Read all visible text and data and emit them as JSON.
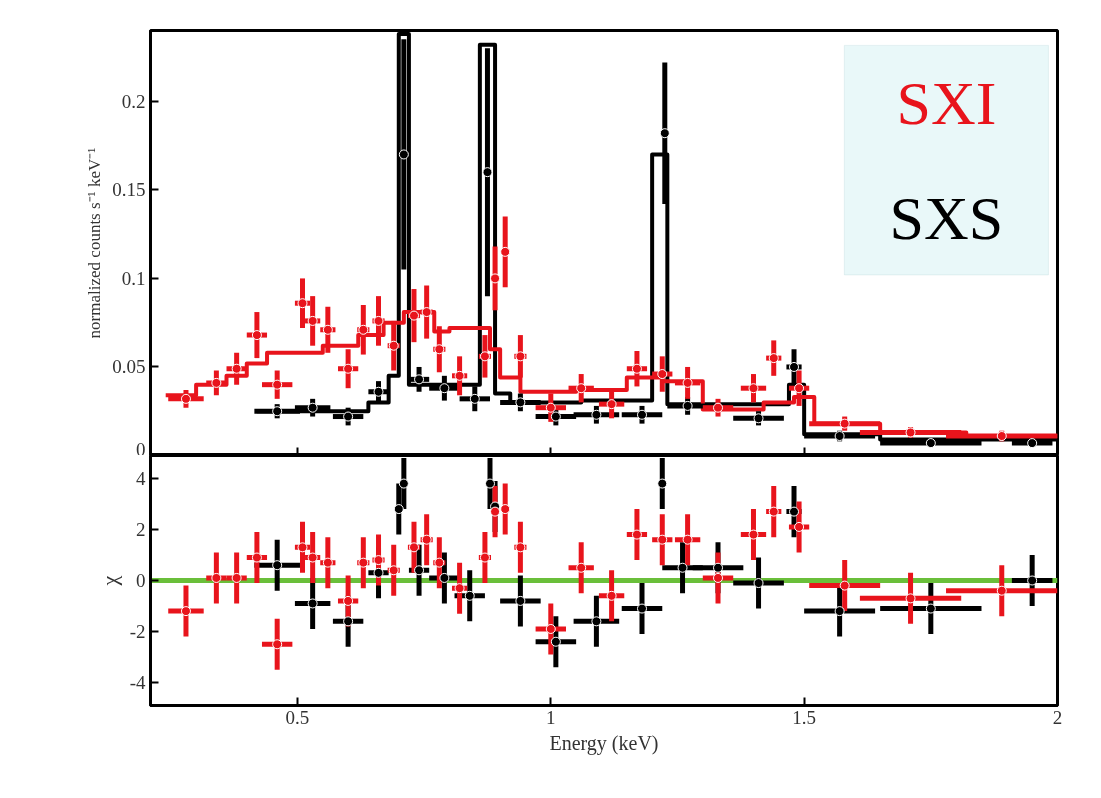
{
  "chart_data": [
    {
      "type": "scatter",
      "ylabel": "normalized counts s⁻¹ keV⁻¹",
      "xlim": [
        0.21,
        2.0
      ],
      "xticks": [
        0.5,
        1,
        1.5,
        2
      ],
      "ylim": [
        0,
        0.24
      ],
      "yticks": [
        0,
        0.05,
        0.1,
        0.15,
        0.2
      ],
      "tick_labels": "y",
      "series": [
        {
          "type": "line",
          "color": "#000000",
          "x": [
            0.42,
            0.64,
            0.64,
            0.68,
            0.68,
            0.7,
            0.7,
            0.72,
            0.72,
            0.86,
            0.86,
            0.89,
            0.89,
            0.92,
            0.92,
            1.06,
            1.06,
            1.2,
            1.2,
            1.23,
            1.23,
            1.47,
            1.47,
            1.5,
            1.5,
            1.65,
            1.65,
            2.0
          ],
          "values": [
            0.025,
            0.025,
            0.03,
            0.03,
            0.045,
            0.045,
            0.238,
            0.238,
            0.04,
            0.04,
            0.232,
            0.232,
            0.035,
            0.035,
            0.03,
            0.03,
            0.031,
            0.031,
            0.17,
            0.17,
            0.029,
            0.029,
            0.04,
            0.04,
            0.012,
            0.012,
            0.009,
            0.009
          ]
        },
        {
          "type": "line",
          "color": "#e8141c",
          "x": [
            0.24,
            0.3,
            0.3,
            0.36,
            0.36,
            0.4,
            0.4,
            0.44,
            0.44,
            0.55,
            0.55,
            0.62,
            0.62,
            0.67,
            0.67,
            0.71,
            0.71,
            0.77,
            0.77,
            0.8,
            0.8,
            0.88,
            0.88,
            0.9,
            0.9,
            0.94,
            0.94,
            1.05,
            1.05,
            1.15,
            1.15,
            1.22,
            1.22,
            1.3,
            1.3,
            1.42,
            1.42,
            1.48,
            1.48,
            1.52,
            1.52,
            1.65,
            1.65,
            1.82,
            1.82,
            2.0
          ],
          "values": [
            0.034,
            0.034,
            0.04,
            0.04,
            0.045,
            0.045,
            0.052,
            0.052,
            0.058,
            0.058,
            0.062,
            0.062,
            0.068,
            0.068,
            0.075,
            0.075,
            0.081,
            0.081,
            0.07,
            0.07,
            0.072,
            0.072,
            0.06,
            0.06,
            0.044,
            0.044,
            0.036,
            0.036,
            0.037,
            0.037,
            0.044,
            0.044,
            0.042,
            0.042,
            0.026,
            0.026,
            0.03,
            0.03,
            0.033,
            0.033,
            0.018,
            0.018,
            0.013,
            0.013,
            0.011,
            0.011
          ]
        },
        {
          "name": "SXS",
          "color": "#000000",
          "marker": "circle",
          "x": [
            0.46,
            0.53,
            0.6,
            0.66,
            0.71,
            0.74,
            0.79,
            0.85,
            0.875,
            0.94,
            1.01,
            1.09,
            1.18,
            1.225,
            1.27,
            1.41,
            1.48,
            1.57,
            1.75,
            1.95
          ],
          "values": [
            0.025,
            0.027,
            0.022,
            0.036,
            0.17,
            0.043,
            0.038,
            0.032,
            0.16,
            0.03,
            0.022,
            0.023,
            0.023,
            0.182,
            0.028,
            0.021,
            0.05,
            0.011,
            0.007,
            0.007
          ],
          "xerrors": [
            0.045,
            0.035,
            0.03,
            0.02,
            0.004,
            0.02,
            0.03,
            0.03,
            0.004,
            0.04,
            0.04,
            0.045,
            0.04,
            0.003,
            0.04,
            0.05,
            0.015,
            0.07,
            0.1,
            0.04
          ],
          "errors": [
            0.004,
            0.005,
            0.005,
            0.006,
            0.065,
            0.007,
            0.007,
            0.007,
            0.07,
            0.005,
            0.005,
            0.005,
            0.005,
            0.04,
            0.005,
            0.004,
            0.01,
            0.003,
            0.002,
            0.002
          ]
        },
        {
          "name": "SXI",
          "color": "#e8141c",
          "marker": "circle",
          "x": [
            0.28,
            0.34,
            0.38,
            0.42,
            0.46,
            0.51,
            0.53,
            0.56,
            0.6,
            0.63,
            0.66,
            0.69,
            0.73,
            0.755,
            0.78,
            0.82,
            0.87,
            0.89,
            0.91,
            0.94,
            1.0,
            1.06,
            1.12,
            1.17,
            1.22,
            1.27,
            1.33,
            1.4,
            1.44,
            1.49,
            1.58,
            1.71,
            1.89
          ],
          "values": [
            0.032,
            0.041,
            0.049,
            0.068,
            0.04,
            0.086,
            0.076,
            0.071,
            0.049,
            0.071,
            0.076,
            0.062,
            0.079,
            0.081,
            0.06,
            0.045,
            0.056,
            0.1,
            0.115,
            0.056,
            0.027,
            0.038,
            0.029,
            0.049,
            0.046,
            0.041,
            0.027,
            0.038,
            0.055,
            0.038,
            0.018,
            0.013,
            0.011
          ],
          "xerrors": [
            0.035,
            0.02,
            0.02,
            0.02,
            0.03,
            0.015,
            0.015,
            0.015,
            0.02,
            0.012,
            0.012,
            0.012,
            0.012,
            0.012,
            0.012,
            0.015,
            0.012,
            0.008,
            0.008,
            0.012,
            0.03,
            0.025,
            0.025,
            0.02,
            0.02,
            0.025,
            0.03,
            0.025,
            0.015,
            0.02,
            0.07,
            0.1,
            0.11
          ],
          "errors": [
            0.005,
            0.007,
            0.009,
            0.013,
            0.008,
            0.014,
            0.014,
            0.013,
            0.011,
            0.014,
            0.014,
            0.014,
            0.015,
            0.015,
            0.013,
            0.011,
            0.012,
            0.018,
            0.02,
            0.012,
            0.008,
            0.008,
            0.008,
            0.01,
            0.01,
            0.009,
            0.005,
            0.008,
            0.01,
            0.01,
            0.004,
            0.003,
            0.003
          ]
        }
      ]
    },
    {
      "type": "scatter",
      "xlabel": "Energy (keV)",
      "ylabel": "χ",
      "xlim": [
        0.21,
        2.0
      ],
      "xticks": [
        0.5,
        1,
        1.5,
        2
      ],
      "ylim": [
        -4.9,
        4.9
      ],
      "yticks": [
        -4,
        -2,
        0,
        2,
        4
      ],
      "ref_lines": [
        {
          "axis": "y",
          "value": 0,
          "color": "#6abf3a"
        }
      ],
      "series": [
        {
          "color": "#000000",
          "marker": "circle",
          "x": [
            0.46,
            0.53,
            0.6,
            0.66,
            0.7,
            0.71,
            0.74,
            0.79,
            0.84,
            0.88,
            0.89,
            0.94,
            1.01,
            1.09,
            1.18,
            1.22,
            1.26,
            1.33,
            1.41,
            1.48,
            1.57,
            1.75,
            1.95
          ],
          "values": [
            0.6,
            -0.9,
            -1.6,
            0.3,
            2.8,
            3.8,
            0.4,
            0.1,
            -0.6,
            3.8,
            2.9,
            -0.8,
            -2.4,
            -1.6,
            -1.1,
            3.8,
            0.5,
            0.5,
            -0.1,
            2.7,
            -1.2,
            -1.1,
            0.0
          ],
          "xerrors": [
            0.045,
            0.035,
            0.03,
            0.02,
            0.004,
            0.004,
            0.02,
            0.03,
            0.03,
            0.004,
            0.004,
            0.04,
            0.04,
            0.045,
            0.04,
            0.003,
            0.04,
            0.05,
            0.05,
            0.015,
            0.07,
            0.1,
            0.04
          ],
          "errors": [
            1,
            1,
            1,
            1,
            1,
            1,
            1,
            1,
            1,
            1,
            1,
            1,
            1,
            1,
            1,
            1,
            1,
            1,
            1,
            1,
            1,
            1,
            1
          ]
        },
        {
          "color": "#e8141c",
          "marker": "circle",
          "x": [
            0.28,
            0.34,
            0.38,
            0.42,
            0.46,
            0.51,
            0.53,
            0.56,
            0.6,
            0.63,
            0.66,
            0.69,
            0.73,
            0.755,
            0.78,
            0.82,
            0.87,
            0.89,
            0.91,
            0.94,
            1.0,
            1.06,
            1.12,
            1.17,
            1.22,
            1.27,
            1.33,
            1.4,
            1.44,
            1.49,
            1.58,
            1.71,
            1.89
          ],
          "values": [
            -1.2,
            0.1,
            0.1,
            0.9,
            -2.5,
            1.3,
            0.9,
            0.7,
            -0.8,
            0.7,
            0.8,
            0.4,
            1.3,
            1.6,
            0.7,
            -0.3,
            0.9,
            2.7,
            2.8,
            1.3,
            -1.9,
            0.5,
            -0.6,
            1.8,
            1.6,
            1.6,
            0.1,
            1.8,
            2.7,
            2.1,
            -0.2,
            -0.7,
            -0.4
          ],
          "xerrors": [
            0.035,
            0.02,
            0.02,
            0.02,
            0.03,
            0.015,
            0.015,
            0.015,
            0.02,
            0.012,
            0.012,
            0.012,
            0.012,
            0.012,
            0.012,
            0.015,
            0.012,
            0.008,
            0.008,
            0.012,
            0.03,
            0.025,
            0.025,
            0.02,
            0.02,
            0.025,
            0.03,
            0.025,
            0.015,
            0.02,
            0.07,
            0.1,
            0.11
          ],
          "errors": [
            1,
            1,
            1,
            1,
            1,
            1,
            1,
            1,
            1,
            1,
            1,
            1,
            1,
            1,
            1,
            1,
            1,
            1,
            1,
            1,
            1,
            1,
            1,
            1,
            1,
            1,
            1,
            1,
            1,
            1,
            1,
            1,
            1
          ]
        }
      ]
    }
  ]
}
